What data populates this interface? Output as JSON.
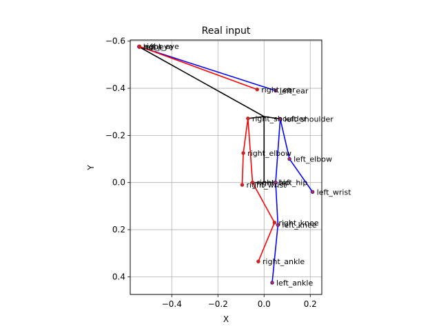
{
  "chart_data": {
    "type": "scatter",
    "title": "Real input",
    "xlabel": "X",
    "ylabel": "Y",
    "xlim": [
      -0.58,
      0.25
    ],
    "ylim": [
      -0.605,
      0.475
    ],
    "y_inverted": true,
    "grid": true,
    "xticks": [
      -0.4,
      -0.2,
      0.0,
      0.2
    ],
    "xtick_labels": [
      "−0.4",
      "−0.2",
      "0.0",
      "0.2"
    ],
    "yticks": [
      -0.6,
      -0.4,
      -0.2,
      0.0,
      0.2,
      0.4
    ],
    "ytick_labels": [
      "−0.6",
      "−0.4",
      "−0.2",
      "0.0",
      "0.2",
      "0.4"
    ],
    "keypoints": [
      {
        "name": "nose",
        "x": -0.54,
        "y": -0.575
      },
      {
        "name": "left_eye",
        "x": -0.542,
        "y": -0.577
      },
      {
        "name": "right_eye",
        "x": -0.54,
        "y": -0.578
      },
      {
        "name": "left_ear",
        "x": 0.05,
        "y": -0.39
      },
      {
        "name": "right_ear",
        "x": -0.03,
        "y": -0.395
      },
      {
        "name": "left_shoulder",
        "x": 0.07,
        "y": -0.27
      },
      {
        "name": "right_shoulder",
        "x": -0.07,
        "y": -0.272
      },
      {
        "name": "left_elbow",
        "x": 0.11,
        "y": -0.1
      },
      {
        "name": "right_elbow",
        "x": -0.09,
        "y": -0.125
      },
      {
        "name": "left_wrist",
        "x": 0.21,
        "y": 0.04
      },
      {
        "name": "right_wrist",
        "x": -0.095,
        "y": 0.01
      },
      {
        "name": "left_hip",
        "x": 0.05,
        "y": 0.0
      },
      {
        "name": "right_hip",
        "x": -0.05,
        "y": 0.0
      },
      {
        "name": "left_knee",
        "x": 0.06,
        "y": 0.18
      },
      {
        "name": "right_knee",
        "x": 0.045,
        "y": 0.17
      },
      {
        "name": "left_ankle",
        "x": 0.035,
        "y": 0.425
      },
      {
        "name": "right_ankle",
        "x": -0.025,
        "y": 0.335
      }
    ],
    "series": [
      {
        "color": "#0000ff",
        "segments": [
          [
            "nose",
            "left_eye"
          ],
          [
            "left_eye",
            "left_ear"
          ],
          [
            "left_shoulder",
            "left_elbow"
          ],
          [
            "left_elbow",
            "left_wrist"
          ],
          [
            "left_shoulder",
            "left_hip"
          ],
          [
            "left_hip",
            "left_knee"
          ],
          [
            "left_knee",
            "left_ankle"
          ]
        ]
      },
      {
        "color": "#ff0000",
        "segments": [
          [
            "nose",
            "right_eye"
          ],
          [
            "right_eye",
            "right_ear"
          ],
          [
            "right_shoulder",
            "right_elbow"
          ],
          [
            "right_elbow",
            "right_wrist"
          ],
          [
            "right_shoulder",
            "right_hip"
          ],
          [
            "right_hip",
            "right_knee"
          ],
          [
            "right_knee",
            "right_ankle"
          ]
        ]
      },
      {
        "color": "#000000",
        "segments": [
          [
            "nose",
            "neck"
          ],
          [
            "neck",
            "left_shoulder"
          ],
          [
            "neck",
            "right_shoulder"
          ],
          [
            "neck",
            "pelvis"
          ],
          [
            "pelvis",
            "left_hip"
          ],
          [
            "pelvis",
            "right_hip"
          ]
        ]
      }
    ],
    "virtual_points": [
      {
        "name": "neck",
        "x": 0.0,
        "y": -0.28
      },
      {
        "name": "pelvis",
        "x": 0.0,
        "y": 0.0
      }
    ],
    "colors": {
      "left": "#0000ff",
      "right": "#ff0000",
      "center": "#000000",
      "grid": "#b0b0b0"
    }
  }
}
